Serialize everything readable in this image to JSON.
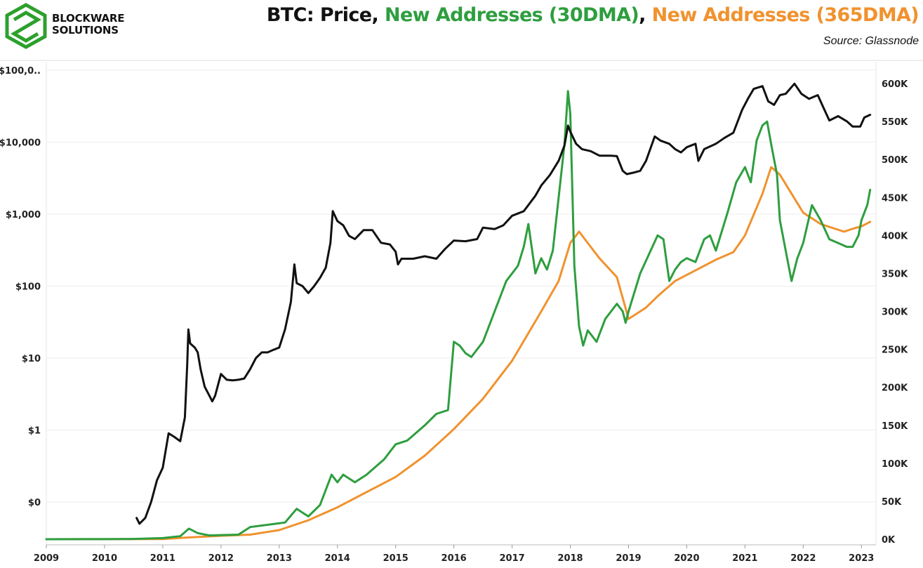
{
  "brand": {
    "line1": "BLOCKWARE",
    "line2": "SOLUTIONS",
    "logo_icon": "blockware-hex-cube-icon",
    "logo_color": "#2ca02c"
  },
  "header": {
    "title_parts": [
      {
        "text": "BTC: Price",
        "color": "#111111"
      },
      {
        "text": ", ",
        "color": "#111111"
      },
      {
        "text": "New Addresses (30DMA)",
        "color": "#2e9e3f"
      },
      {
        "text": ", ",
        "color": "#111111"
      },
      {
        "text": "New Addresses (365DMA)",
        "color": "#f0922e"
      }
    ],
    "source": "Source: Glassnode"
  },
  "chart_data": {
    "type": "line",
    "x_ticks": [
      "2009",
      "2010",
      "2011",
      "2012",
      "2013",
      "2014",
      "2015",
      "2016",
      "2017",
      "2018",
      "2019",
      "2020",
      "2021",
      "2022",
      "2023"
    ],
    "y_left": {
      "scale": "log",
      "ticks": [
        "$100,0..",
        "$10,000",
        "$1,000",
        "$100",
        "$10",
        "$1",
        "$0"
      ],
      "tick_values": [
        100000,
        10000,
        1000,
        100,
        10,
        1,
        0.1
      ]
    },
    "y_right": {
      "scale": "linear",
      "range": [
        0,
        600000
      ],
      "ticks": [
        "600K",
        "550K",
        "500K",
        "450K",
        "400K",
        "350K",
        "300K",
        "250K",
        "200K",
        "150K",
        "100K",
        "50K",
        "0K"
      ],
      "tick_values": [
        600000,
        550000,
        500000,
        450000,
        400000,
        350000,
        300000,
        250000,
        200000,
        150000,
        100000,
        50000,
        0
      ]
    },
    "grid": true,
    "series": [
      {
        "axis": "left",
        "color": "#111111",
        "points": [
          [
            2010.55,
            0.06
          ],
          [
            2010.6,
            0.05
          ],
          [
            2010.7,
            0.06
          ],
          [
            2010.8,
            0.1
          ],
          [
            2010.9,
            0.2
          ],
          [
            2011.0,
            0.3
          ],
          [
            2011.1,
            0.9
          ],
          [
            2011.2,
            0.8
          ],
          [
            2011.3,
            0.7
          ],
          [
            2011.38,
            1.5
          ],
          [
            2011.42,
            8
          ],
          [
            2011.44,
            25
          ],
          [
            2011.47,
            16
          ],
          [
            2011.55,
            14
          ],
          [
            2011.6,
            12
          ],
          [
            2011.65,
            7
          ],
          [
            2011.72,
            4
          ],
          [
            2011.8,
            3
          ],
          [
            2011.85,
            2.5
          ],
          [
            2011.9,
            3
          ],
          [
            2012.0,
            6
          ],
          [
            2012.1,
            5
          ],
          [
            2012.2,
            4.9
          ],
          [
            2012.3,
            5
          ],
          [
            2012.4,
            5.2
          ],
          [
            2012.5,
            7
          ],
          [
            2012.6,
            10
          ],
          [
            2012.7,
            12
          ],
          [
            2012.8,
            12
          ],
          [
            2012.9,
            13
          ],
          [
            2013.0,
            14
          ],
          [
            2013.1,
            25
          ],
          [
            2013.2,
            60
          ],
          [
            2013.26,
            200
          ],
          [
            2013.3,
            110
          ],
          [
            2013.4,
            100
          ],
          [
            2013.5,
            80
          ],
          [
            2013.6,
            100
          ],
          [
            2013.7,
            130
          ],
          [
            2013.8,
            180
          ],
          [
            2013.88,
            400
          ],
          [
            2013.92,
            1100
          ],
          [
            2014.0,
            800
          ],
          [
            2014.1,
            700
          ],
          [
            2014.2,
            500
          ],
          [
            2014.3,
            450
          ],
          [
            2014.45,
            600
          ],
          [
            2014.6,
            600
          ],
          [
            2014.75,
            400
          ],
          [
            2014.9,
            380
          ],
          [
            2015.0,
            300
          ],
          [
            2015.04,
            200
          ],
          [
            2015.1,
            240
          ],
          [
            2015.3,
            240
          ],
          [
            2015.5,
            260
          ],
          [
            2015.7,
            240
          ],
          [
            2015.85,
            330
          ],
          [
            2016.0,
            430
          ],
          [
            2016.2,
            420
          ],
          [
            2016.4,
            450
          ],
          [
            2016.5,
            650
          ],
          [
            2016.7,
            620
          ],
          [
            2016.85,
            700
          ],
          [
            2017.0,
            950
          ],
          [
            2017.2,
            1100
          ],
          [
            2017.4,
            1800
          ],
          [
            2017.5,
            2500
          ],
          [
            2017.65,
            3500
          ],
          [
            2017.8,
            5500
          ],
          [
            2017.9,
            9000
          ],
          [
            2017.96,
            17000
          ],
          [
            2018.0,
            14000
          ],
          [
            2018.1,
            9500
          ],
          [
            2018.2,
            8000
          ],
          [
            2018.35,
            7500
          ],
          [
            2018.5,
            6500
          ],
          [
            2018.7,
            6500
          ],
          [
            2018.8,
            6400
          ],
          [
            2018.9,
            4000
          ],
          [
            2018.97,
            3600
          ],
          [
            2019.1,
            3800
          ],
          [
            2019.2,
            4000
          ],
          [
            2019.3,
            5500
          ],
          [
            2019.45,
            12000
          ],
          [
            2019.55,
            10500
          ],
          [
            2019.7,
            9500
          ],
          [
            2019.8,
            8000
          ],
          [
            2019.9,
            7200
          ],
          [
            2020.0,
            8500
          ],
          [
            2020.15,
            9500
          ],
          [
            2020.2,
            5500
          ],
          [
            2020.3,
            8000
          ],
          [
            2020.5,
            9500
          ],
          [
            2020.65,
            11500
          ],
          [
            2020.8,
            13500
          ],
          [
            2020.95,
            28000
          ],
          [
            2021.05,
            40000
          ],
          [
            2021.15,
            55000
          ],
          [
            2021.3,
            60000
          ],
          [
            2021.4,
            37000
          ],
          [
            2021.5,
            33000
          ],
          [
            2021.6,
            45000
          ],
          [
            2021.7,
            47000
          ],
          [
            2021.85,
            65000
          ],
          [
            2021.97,
            47000
          ],
          [
            2022.1,
            40000
          ],
          [
            2022.25,
            45000
          ],
          [
            2022.35,
            30000
          ],
          [
            2022.45,
            20000
          ],
          [
            2022.6,
            23000
          ],
          [
            2022.75,
            19500
          ],
          [
            2022.85,
            16500
          ],
          [
            2022.98,
            16500
          ],
          [
            2023.05,
            22000
          ],
          [
            2023.15,
            24000
          ]
        ]
      },
      {
        "name": "New Addresses (30DMA)",
        "axis": "right",
        "color": "#2e9e3f",
        "points": [
          [
            2009.0,
            0
          ],
          [
            2010.0,
            100
          ],
          [
            2010.5,
            400
          ],
          [
            2011.0,
            1500
          ],
          [
            2011.3,
            4000
          ],
          [
            2011.45,
            14000
          ],
          [
            2011.6,
            8000
          ],
          [
            2011.8,
            5000
          ],
          [
            2012.0,
            5500
          ],
          [
            2012.3,
            6000
          ],
          [
            2012.5,
            16000
          ],
          [
            2012.7,
            18000
          ],
          [
            2012.9,
            20000
          ],
          [
            2013.1,
            22000
          ],
          [
            2013.3,
            40000
          ],
          [
            2013.5,
            30000
          ],
          [
            2013.7,
            45000
          ],
          [
            2013.9,
            85000
          ],
          [
            2014.0,
            75000
          ],
          [
            2014.1,
            85000
          ],
          [
            2014.3,
            75000
          ],
          [
            2014.5,
            85000
          ],
          [
            2014.8,
            105000
          ],
          [
            2015.0,
            125000
          ],
          [
            2015.2,
            130000
          ],
          [
            2015.5,
            150000
          ],
          [
            2015.7,
            165000
          ],
          [
            2015.9,
            170000
          ],
          [
            2016.0,
            260000
          ],
          [
            2016.1,
            255000
          ],
          [
            2016.2,
            245000
          ],
          [
            2016.3,
            240000
          ],
          [
            2016.5,
            260000
          ],
          [
            2016.7,
            300000
          ],
          [
            2016.9,
            340000
          ],
          [
            2017.0,
            350000
          ],
          [
            2017.1,
            360000
          ],
          [
            2017.2,
            385000
          ],
          [
            2017.28,
            415000
          ],
          [
            2017.4,
            350000
          ],
          [
            2017.5,
            370000
          ],
          [
            2017.6,
            355000
          ],
          [
            2017.7,
            380000
          ],
          [
            2017.8,
            450000
          ],
          [
            2017.9,
            520000
          ],
          [
            2017.96,
            590000
          ],
          [
            2018.0,
            560000
          ],
          [
            2018.07,
            360000
          ],
          [
            2018.15,
            280000
          ],
          [
            2018.22,
            255000
          ],
          [
            2018.3,
            275000
          ],
          [
            2018.45,
            260000
          ],
          [
            2018.6,
            290000
          ],
          [
            2018.75,
            305000
          ],
          [
            2018.8,
            310000
          ],
          [
            2018.9,
            300000
          ],
          [
            2018.95,
            285000
          ],
          [
            2019.0,
            300000
          ],
          [
            2019.2,
            350000
          ],
          [
            2019.35,
            375000
          ],
          [
            2019.5,
            400000
          ],
          [
            2019.6,
            395000
          ],
          [
            2019.7,
            340000
          ],
          [
            2019.8,
            355000
          ],
          [
            2019.9,
            365000
          ],
          [
            2020.0,
            370000
          ],
          [
            2020.15,
            365000
          ],
          [
            2020.3,
            395000
          ],
          [
            2020.4,
            400000
          ],
          [
            2020.5,
            380000
          ],
          [
            2020.7,
            430000
          ],
          [
            2020.85,
            470000
          ],
          [
            2021.0,
            490000
          ],
          [
            2021.1,
            470000
          ],
          [
            2021.2,
            525000
          ],
          [
            2021.3,
            545000
          ],
          [
            2021.38,
            550000
          ],
          [
            2021.45,
            520000
          ],
          [
            2021.55,
            480000
          ],
          [
            2021.6,
            420000
          ],
          [
            2021.7,
            380000
          ],
          [
            2021.8,
            340000
          ],
          [
            2021.9,
            370000
          ],
          [
            2022.0,
            390000
          ],
          [
            2022.15,
            440000
          ],
          [
            2022.3,
            420000
          ],
          [
            2022.45,
            395000
          ],
          [
            2022.6,
            390000
          ],
          [
            2022.75,
            385000
          ],
          [
            2022.85,
            385000
          ],
          [
            2022.95,
            400000
          ],
          [
            2023.0,
            420000
          ],
          [
            2023.1,
            440000
          ],
          [
            2023.15,
            460000
          ]
        ]
      },
      {
        "name": "New Addresses (365DMA)",
        "axis": "right",
        "color": "#f0922e",
        "points": [
          [
            2009.0,
            0
          ],
          [
            2011.0,
            300
          ],
          [
            2011.5,
            2500
          ],
          [
            2012.0,
            4500
          ],
          [
            2012.5,
            6000
          ],
          [
            2013.0,
            12000
          ],
          [
            2013.5,
            25000
          ],
          [
            2014.0,
            42000
          ],
          [
            2014.5,
            62000
          ],
          [
            2015.0,
            82000
          ],
          [
            2015.5,
            110000
          ],
          [
            2016.0,
            145000
          ],
          [
            2016.5,
            185000
          ],
          [
            2017.0,
            235000
          ],
          [
            2017.5,
            300000
          ],
          [
            2017.8,
            340000
          ],
          [
            2018.0,
            390000
          ],
          [
            2018.15,
            405000
          ],
          [
            2018.3,
            390000
          ],
          [
            2018.5,
            370000
          ],
          [
            2018.8,
            345000
          ],
          [
            2019.0,
            290000
          ],
          [
            2019.3,
            305000
          ],
          [
            2019.5,
            320000
          ],
          [
            2019.8,
            340000
          ],
          [
            2020.0,
            348000
          ],
          [
            2020.5,
            368000
          ],
          [
            2020.8,
            378000
          ],
          [
            2021.0,
            400000
          ],
          [
            2021.3,
            455000
          ],
          [
            2021.45,
            490000
          ],
          [
            2021.6,
            480000
          ],
          [
            2021.8,
            455000
          ],
          [
            2022.0,
            430000
          ],
          [
            2022.3,
            415000
          ],
          [
            2022.5,
            410000
          ],
          [
            2022.7,
            405000
          ],
          [
            2022.9,
            410000
          ],
          [
            2023.0,
            412000
          ],
          [
            2023.15,
            418000
          ]
        ]
      }
    ]
  }
}
